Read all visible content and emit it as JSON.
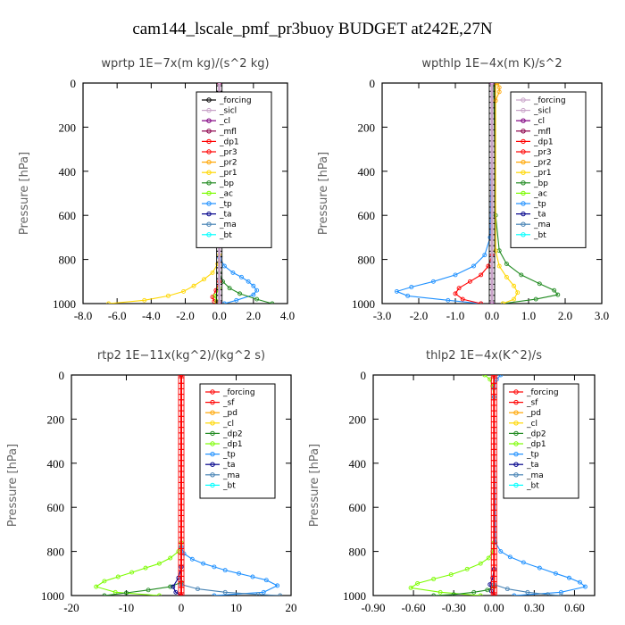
{
  "title": "cam144_lscale_pmf_pr3buoy  BUDGET at242E,27N",
  "chart_data": [
    {
      "type": "line",
      "title": "wprtp   1E−7x(m kg)/(s^2 kg)",
      "ylabel": "Pressure  [hPa]",
      "xlabel": "",
      "xlim": [
        -8,
        4
      ],
      "ylim": [
        1000,
        0
      ],
      "xticks": [
        -8,
        -6,
        -4,
        -2,
        0,
        2,
        4
      ],
      "xtick_labels": [
        "-8.0",
        "-6.0",
        "-4.0",
        "-2.0",
        "0.0",
        "2.0",
        "4.0"
      ],
      "yticks": [
        0,
        200,
        400,
        600,
        800,
        1000
      ],
      "ytick_labels": [
        "0",
        "200",
        "400",
        "600",
        "800",
        "1000"
      ],
      "legend_position": "top-right",
      "legend": [
        {
          "name": "_forcing",
          "color": "#000000"
        },
        {
          "name": "_sicl",
          "color": "#c8a2c8"
        },
        {
          "name": "_cl",
          "color": "#800080"
        },
        {
          "name": "_mfl",
          "color": "#8b004b"
        },
        {
          "name": "_dp1",
          "color": "#ff0000"
        },
        {
          "name": "_pr3",
          "color": "#ff0000"
        },
        {
          "name": "_pr2",
          "color": "#ffa500"
        },
        {
          "name": "_pr1",
          "color": "#ffd700"
        },
        {
          "name": "_bp",
          "color": "#228b22"
        },
        {
          "name": "_ac",
          "color": "#7cfc00"
        },
        {
          "name": "_tp",
          "color": "#1e90ff"
        },
        {
          "name": "_ta",
          "color": "#00008b"
        },
        {
          "name": "_ma",
          "color": "#4682b4"
        },
        {
          "name": "_bt",
          "color": "#00ffff"
        }
      ],
      "series": [
        {
          "color": "#ffd700",
          "x": [
            0,
            0,
            -0.1,
            -0.4,
            -0.9,
            -1.5,
            -2.1,
            -3.0,
            -4.4,
            -6.5
          ],
          "y": [
            0,
            780,
            820,
            860,
            890,
            920,
            945,
            965,
            985,
            1000
          ]
        },
        {
          "color": "#1e90ff",
          "x": [
            0,
            0,
            0.3,
            0.8,
            1.3,
            1.7,
            2.0,
            2.2,
            2.0,
            1.0,
            0.3
          ],
          "y": [
            0,
            790,
            830,
            860,
            880,
            900,
            920,
            940,
            960,
            985,
            1000
          ]
        },
        {
          "color": "#228b22",
          "x": [
            0,
            0,
            0.2,
            0.6,
            1.2,
            2.2,
            3.1
          ],
          "y": [
            0,
            860,
            900,
            930,
            955,
            980,
            1000
          ]
        },
        {
          "color": "#ff0000",
          "x": [
            0,
            0,
            -0.2,
            -0.4,
            -0.3,
            0
          ],
          "y": [
            0,
            900,
            940,
            970,
            990,
            1000
          ]
        },
        {
          "color": "#7cfc00",
          "x": [
            0,
            0,
            -0.25,
            -0.15,
            0
          ],
          "y": [
            0,
            930,
            965,
            990,
            1000
          ]
        },
        {
          "color": "#000000",
          "x": [
            0,
            0
          ],
          "y": [
            0,
            1000
          ]
        },
        {
          "color": "#800080",
          "x": [
            0,
            0
          ],
          "y": [
            0,
            1000
          ]
        },
        {
          "color": "#8b004b",
          "x": [
            0,
            0
          ],
          "y": [
            0,
            1000
          ]
        }
      ]
    },
    {
      "type": "line",
      "title": "wpthlp   1E−4x(m K)/s^2",
      "ylabel": "Pressure  [hPa]",
      "xlabel": "",
      "xlim": [
        -3,
        3
      ],
      "ylim": [
        1000,
        0
      ],
      "xticks": [
        -3,
        -2,
        -1,
        0,
        1,
        2,
        3
      ],
      "xtick_labels": [
        "-3.0",
        "-2.0",
        "-1.0",
        "0.0",
        "1.0",
        "2.0",
        "3.0"
      ],
      "yticks": [
        0,
        200,
        400,
        600,
        800,
        1000
      ],
      "ytick_labels": [
        "0",
        "200",
        "400",
        "600",
        "800",
        "1000"
      ],
      "legend_position": "top-right",
      "legend": [
        {
          "name": "_forcing",
          "color": "#c8a2c8"
        },
        {
          "name": "_sicl",
          "color": "#c8a2c8"
        },
        {
          "name": "_cl",
          "color": "#800080"
        },
        {
          "name": "_mfl",
          "color": "#8b004b"
        },
        {
          "name": "_dp1",
          "color": "#ff0000"
        },
        {
          "name": "_pr3",
          "color": "#ff0000"
        },
        {
          "name": "_pr2",
          "color": "#ffa500"
        },
        {
          "name": "_pr1",
          "color": "#ffd700"
        },
        {
          "name": "_bp",
          "color": "#228b22"
        },
        {
          "name": "_ac",
          "color": "#7cfc00"
        },
        {
          "name": "_tp",
          "color": "#1e90ff"
        },
        {
          "name": "_ta",
          "color": "#00008b"
        },
        {
          "name": "_ma",
          "color": "#4682b4"
        },
        {
          "name": "_bt",
          "color": "#00ffff"
        }
      ],
      "series": [
        {
          "color": "#1e90ff",
          "x": [
            0,
            -0.05,
            -0.2,
            -0.5,
            -1.0,
            -1.6,
            -2.2,
            -2.6,
            -2.3,
            -1.2,
            -0.3
          ],
          "y": [
            0,
            700,
            780,
            830,
            870,
            900,
            925,
            945,
            965,
            985,
            1000
          ]
        },
        {
          "color": "#228b22",
          "x": [
            0.05,
            0.1,
            0.2,
            0.4,
            0.8,
            1.3,
            1.7,
            1.8,
            1.2,
            0.3
          ],
          "y": [
            0,
            600,
            760,
            820,
            870,
            910,
            940,
            960,
            980,
            1000
          ]
        },
        {
          "color": "#ff0000",
          "x": [
            0,
            0,
            -0.1,
            -0.3,
            -0.6,
            -0.9,
            -1.0,
            -0.8,
            -0.3
          ],
          "y": [
            0,
            780,
            830,
            870,
            900,
            930,
            955,
            980,
            1000
          ]
        },
        {
          "color": "#ffd700",
          "x": [
            0.1,
            0.1,
            0.2,
            0.4,
            0.6,
            0.7,
            0.6,
            0.3
          ],
          "y": [
            0,
            760,
            830,
            880,
            920,
            950,
            980,
            1000
          ]
        },
        {
          "color": "#ffa500",
          "x": [
            0.15,
            0.2,
            0.2,
            0.1
          ],
          "y": [
            0,
            20,
            40,
            80
          ]
        },
        {
          "color": "#c8a2c8",
          "x": [
            0,
            0
          ],
          "y": [
            0,
            1000
          ]
        },
        {
          "color": "#800080",
          "x": [
            0,
            0
          ],
          "y": [
            0,
            1000
          ]
        }
      ]
    },
    {
      "type": "line",
      "title": "rtp2   1E−11x(kg^2)/(kg^2 s)",
      "ylabel": "Pressure  [hPa]",
      "xlabel": "",
      "xlim": [
        -20,
        20
      ],
      "ylim": [
        1000,
        0
      ],
      "xticks": [
        -20,
        -10,
        0,
        10,
        20
      ],
      "xtick_labels": [
        "-20",
        "-10",
        "0",
        "10",
        "20"
      ],
      "yticks": [
        0,
        200,
        400,
        600,
        800,
        1000
      ],
      "ytick_labels": [
        "0",
        "200",
        "400",
        "600",
        "800",
        "1000"
      ],
      "legend_position": "top-right",
      "legend": [
        {
          "name": "_forcing",
          "color": "#ff0000"
        },
        {
          "name": "_sf",
          "color": "#ff0000"
        },
        {
          "name": "_pd",
          "color": "#ffa500"
        },
        {
          "name": "_cl",
          "color": "#ffd700"
        },
        {
          "name": "_dp2",
          "color": "#228b22"
        },
        {
          "name": "_dp1",
          "color": "#7cfc00"
        },
        {
          "name": "_tp",
          "color": "#1e90ff"
        },
        {
          "name": "_ta",
          "color": "#00008b"
        },
        {
          "name": "_ma",
          "color": "#4682b4"
        },
        {
          "name": "_bt",
          "color": "#00ffff"
        }
      ],
      "series": [
        {
          "color": "#7cfc00",
          "x": [
            0,
            0,
            -0.5,
            -2,
            -4,
            -6.5,
            -9,
            -11.5,
            -14,
            -15.5,
            -12,
            -4
          ],
          "y": [
            0,
            760,
            800,
            830,
            855,
            875,
            895,
            915,
            935,
            960,
            985,
            1000
          ]
        },
        {
          "color": "#1e90ff",
          "x": [
            0,
            0,
            0.5,
            2,
            4,
            6,
            8,
            10.5,
            13,
            15.5,
            17.5,
            15,
            6
          ],
          "y": [
            0,
            780,
            810,
            835,
            855,
            870,
            885,
            900,
            915,
            930,
            955,
            985,
            1000
          ]
        },
        {
          "color": "#228b22",
          "x": [
            0,
            0,
            -2,
            -6,
            -10,
            -14
          ],
          "y": [
            0,
            940,
            960,
            975,
            988,
            1000
          ]
        },
        {
          "color": "#00008b",
          "x": [
            0,
            0,
            -0.5,
            -1.5,
            -1.0,
            0
          ],
          "y": [
            0,
            870,
            920,
            960,
            985,
            1000
          ]
        },
        {
          "color": "#4682b4",
          "x": [
            0,
            0,
            3,
            8,
            14,
            18
          ],
          "y": [
            0,
            950,
            970,
            985,
            995,
            1000
          ]
        },
        {
          "color": "#ff0000",
          "x": [
            0,
            0
          ],
          "y": [
            0,
            1000
          ]
        }
      ]
    },
    {
      "type": "line",
      "title": "thlp2   1E−4x(K^2)/s",
      "ylabel": "Pressure  [hPa]",
      "xlabel": "",
      "xlim": [
        -0.9,
        0.75
      ],
      "ylim": [
        1000,
        0
      ],
      "xticks": [
        -0.9,
        -0.6,
        -0.3,
        0,
        0.3,
        0.6
      ],
      "xtick_labels": [
        "-0.90",
        "-0.60",
        "-0.30",
        "0.00",
        "0.30",
        "0.60"
      ],
      "yticks": [
        0,
        200,
        400,
        600,
        800,
        1000
      ],
      "ytick_labels": [
        "0",
        "200",
        "400",
        "600",
        "800",
        "1000"
      ],
      "legend_position": "top-right",
      "legend": [
        {
          "name": "_forcing",
          "color": "#ff0000"
        },
        {
          "name": "_sf",
          "color": "#ff0000"
        },
        {
          "name": "_pd",
          "color": "#ffa500"
        },
        {
          "name": "_cl",
          "color": "#ffd700"
        },
        {
          "name": "_dp2",
          "color": "#228b22"
        },
        {
          "name": "_dp1",
          "color": "#7cfc00"
        },
        {
          "name": "_tp",
          "color": "#1e90ff"
        },
        {
          "name": "_ta",
          "color": "#00008b"
        },
        {
          "name": "_ma",
          "color": "#4682b4"
        },
        {
          "name": "_bt",
          "color": "#00ffff"
        }
      ],
      "series": [
        {
          "color": "#7cfc00",
          "x": [
            -0.07,
            -0.03,
            -0.01,
            0,
            0,
            -0.01,
            -0.04,
            -0.1,
            -0.2,
            -0.32,
            -0.45,
            -0.57,
            -0.62,
            -0.4,
            -0.1
          ],
          "y": [
            0,
            20,
            50,
            100,
            760,
            800,
            830,
            855,
            880,
            905,
            925,
            945,
            965,
            985,
            1000
          ]
        },
        {
          "color": "#1e90ff",
          "x": [
            0.05,
            0.02,
            0,
            0,
            0.01,
            0.05,
            0.12,
            0.22,
            0.34,
            0.46,
            0.56,
            0.64,
            0.68,
            0.5,
            0.15
          ],
          "y": [
            0,
            20,
            60,
            100,
            760,
            800,
            825,
            850,
            875,
            900,
            920,
            940,
            960,
            985,
            1000
          ]
        },
        {
          "color": "#00008b",
          "x": [
            0,
            0,
            -0.01,
            -0.03,
            -0.02,
            0
          ],
          "y": [
            0,
            880,
            920,
            950,
            980,
            1000
          ]
        },
        {
          "color": "#228b22",
          "x": [
            0,
            0,
            -0.05,
            -0.15,
            -0.3,
            -0.45
          ],
          "y": [
            0,
            960,
            975,
            985,
            995,
            1000
          ]
        },
        {
          "color": "#4682b4",
          "x": [
            0,
            0,
            0.1,
            0.25,
            0.4,
            0.5
          ],
          "y": [
            0,
            950,
            970,
            985,
            995,
            1000
          ]
        },
        {
          "color": "#ff0000",
          "x": [
            0,
            0
          ],
          "y": [
            0,
            1000
          ]
        }
      ]
    }
  ]
}
